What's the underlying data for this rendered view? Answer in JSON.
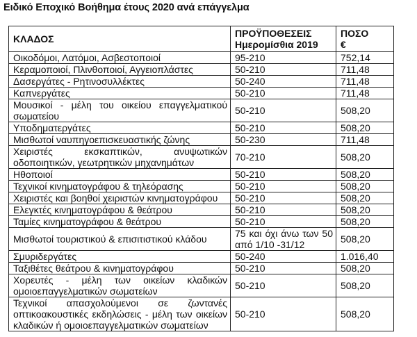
{
  "title": "Ειδικό Εποχικό Βοήθημα έτους 2020 ανά επάγγελμα",
  "table": {
    "headers": {
      "sector": "ΚΛΑΔΟΣ",
      "conditions_line1": "ΠΡΟΫΠΟΘΕΣΕΙΣ",
      "conditions_line2": "Ημερομίσθια 2019",
      "amount_line1": "ΠΟΣΟ",
      "amount_line2": "€"
    },
    "rows": [
      {
        "sector": "Οικοδόμοι, Λατόμοι, Ασβεστοποιοί",
        "conditions": "95-210",
        "amount": "752,14"
      },
      {
        "sector": "Κεραμοποιοί, Πλινθοποιοί, Αγγειοπλάστες",
        "conditions": "50-210",
        "amount": "711,48"
      },
      {
        "sector": "Δασεργάτες - Ρητινοσυλλέκτες",
        "conditions": "50-240",
        "amount": "711,48"
      },
      {
        "sector": "Καπνεργάτες",
        "conditions": "50-210",
        "amount": "711,48"
      },
      {
        "sector": "Μουσικοί - μέλη του οικείου επαγγελματικού σωματείου",
        "conditions": "50-210",
        "amount": "508,20"
      },
      {
        "sector": "Υποδηματεργάτες",
        "conditions": "50-210",
        "amount": "508,20"
      },
      {
        "sector": "Μισθωτοί ναυπηγοεπισκευαστικής ζώνης",
        "conditions": "50-230",
        "amount": "711,48"
      },
      {
        "sector": "Χειριστές εκσκαπτικών, ανυψωτικών οδοποιητικών, γεωτρητικών μηχανημάτων",
        "conditions": "70-210",
        "amount": "508,20"
      },
      {
        "sector": "Ηθοποιοί",
        "conditions": "50-210",
        "amount": "508,20"
      },
      {
        "sector": "Τεχνικοί κινηματογράφου & τηλεόρασης",
        "conditions": "50-210",
        "amount": "508,20"
      },
      {
        "sector": "Χειριστές και βοηθοί χειριστών κινηματογράφου",
        "conditions": "50-210",
        "amount": "508,20"
      },
      {
        "sector": "Ελεγκτές κινηματογράφου & θεάτρου",
        "conditions": "50-210",
        "amount": "508,20"
      },
      {
        "sector": "Ταμίες κινηματογράφου & θεάτρου",
        "conditions": "50-210",
        "amount": "508,20"
      },
      {
        "sector": "Μισθωτοί τουριστικού & επισιτιστικού κλάδου",
        "conditions": "75 και όχι άνω των 50 από 1/10 -31/12",
        "amount": "508,20"
      },
      {
        "sector": "Σμυριδεργάτες",
        "conditions": "50-240",
        "amount": "1.016,40"
      },
      {
        "sector": "Ταξιθέτες θεάτρου & κινηματογράφου",
        "conditions": "50-210",
        "amount": "508,20"
      },
      {
        "sector": "Χορευτές - μέλη των οικείων κλαδικών ομοιοεπαγγελματικών σωματείων",
        "conditions": "50-210",
        "amount": "508,20"
      },
      {
        "sector": "Τεχνικοί απασχολούμενοι σε ζωντανές οπτικοακουστικές εκδηλώσεις - μέλη των οικείων κλαδικών ή ομοιοεπαγγελματικών σωματείων",
        "conditions": "50-210",
        "amount": "508,20"
      }
    ]
  }
}
